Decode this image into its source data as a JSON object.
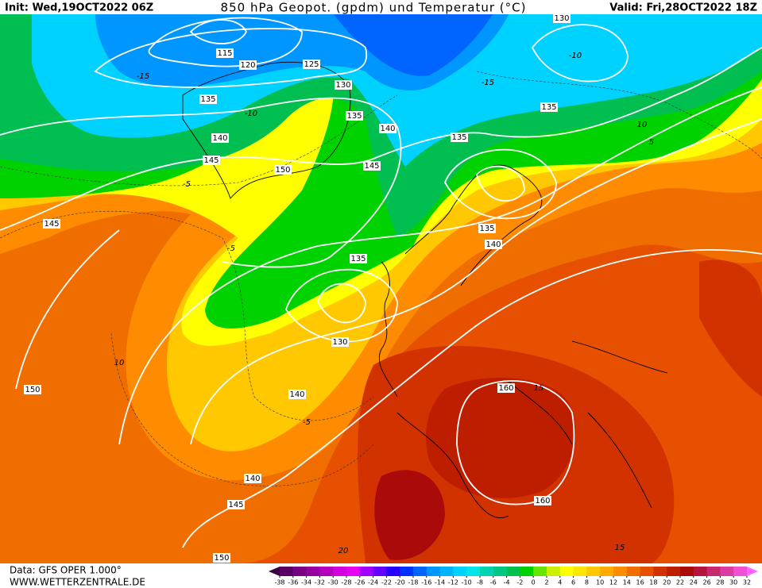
{
  "header": {
    "init": "Init: Wed,19OCT2022 06Z",
    "title": "850 hPa Geopot. (gpdm) und Temperatur (°C)",
    "valid": "Valid: Fri,28OCT2022 18Z"
  },
  "footer": {
    "data": "Data: GFS OPER 1.000°",
    "site": "WWW.WETTERZENTRALE.DE"
  },
  "colorbar": {
    "ticks": [
      -38,
      -36,
      -34,
      -32,
      -30,
      -28,
      -26,
      -24,
      -22,
      -20,
      -18,
      -16,
      -14,
      -12,
      -10,
      -8,
      -6,
      -4,
      -2,
      0,
      2,
      4,
      6,
      8,
      10,
      12,
      14,
      16,
      18,
      20,
      22,
      24,
      26,
      28,
      30,
      32
    ],
    "colors": [
      "#3c0046",
      "#5a0064",
      "#780082",
      "#9600a0",
      "#b400be",
      "#d200dc",
      "#e600f0",
      "#a000ff",
      "#6400ff",
      "#2800ff",
      "#0032ff",
      "#0064ff",
      "#0096ff",
      "#00b4ff",
      "#00d2ff",
      "#00e6e6",
      "#00d2b4",
      "#00c882",
      "#00be50",
      "#00d200",
      "#64e600",
      "#c8f000",
      "#ffff00",
      "#ffe600",
      "#ffc800",
      "#ffaa00",
      "#ff8c00",
      "#f06e00",
      "#e65000",
      "#d23200",
      "#be1e00",
      "#aa0a0a",
      "#b4143c",
      "#c8286e",
      "#dc3ca0",
      "#f050d2",
      "#ff64ff"
    ]
  },
  "geopotential_labels": [
    115,
    120,
    125,
    130,
    135,
    140,
    145,
    150,
    135,
    140,
    145,
    145,
    135,
    130,
    140,
    140,
    145,
    150,
    150,
    160,
    160,
    130,
    135,
    135,
    135,
    140
  ],
  "temperature_labels": [
    -15,
    -10,
    -5,
    -5,
    10,
    -10,
    -15,
    10,
    5,
    15,
    20,
    15,
    -5
  ]
}
